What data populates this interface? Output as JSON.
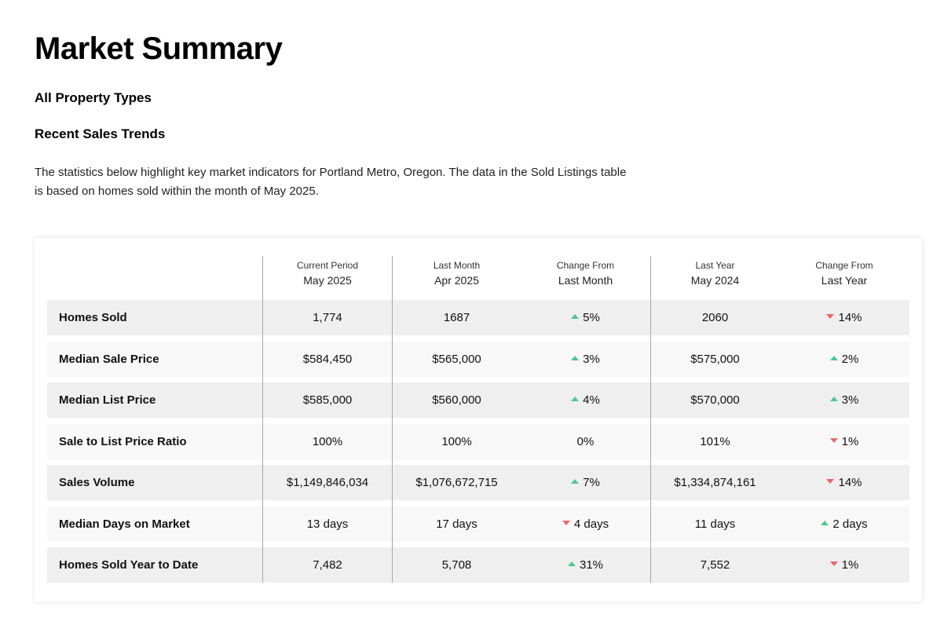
{
  "header": {
    "title": "Market Summary",
    "subtitle": "All Property Types",
    "section_title": "Recent Sales Trends",
    "description": "The statistics below highlight key market indicators for Portland Metro, Oregon. The data in the Sold Listings table is based on homes sold within the month of May 2025."
  },
  "colors": {
    "up": "#4cc98c",
    "down": "#e8686a"
  },
  "table": {
    "columns": [
      {
        "top": "Current Period",
        "bottom": "May 2025"
      },
      {
        "top": "Last Month",
        "bottom": "Apr 2025"
      },
      {
        "top": "Change From",
        "bottom": "Last Month"
      },
      {
        "top": "Last Year",
        "bottom": "May 2024"
      },
      {
        "top": "Change From",
        "bottom": "Last Year"
      }
    ],
    "rows": [
      {
        "label": "Homes Sold",
        "current": "1,774",
        "last_month": "1687",
        "change_month": "5%",
        "change_month_dir": "up",
        "last_year": "2060",
        "change_year": "14%",
        "change_year_dir": "down"
      },
      {
        "label": "Median Sale Price",
        "current": "$584,450",
        "last_month": "$565,000",
        "change_month": "3%",
        "change_month_dir": "up",
        "last_year": "$575,000",
        "change_year": "2%",
        "change_year_dir": "up"
      },
      {
        "label": "Median List Price",
        "current": "$585,000",
        "last_month": "$560,000",
        "change_month": "4%",
        "change_month_dir": "up",
        "last_year": "$570,000",
        "change_year": "3%",
        "change_year_dir": "up"
      },
      {
        "label": "Sale to List Price Ratio",
        "current": "100%",
        "last_month": "100%",
        "change_month": "0%",
        "change_month_dir": "none",
        "last_year": "101%",
        "change_year": "1%",
        "change_year_dir": "down"
      },
      {
        "label": "Sales Volume",
        "current": "$1,149,846,034",
        "last_month": "$1,076,672,715",
        "change_month": "7%",
        "change_month_dir": "up",
        "last_year": "$1,334,874,161",
        "change_year": "14%",
        "change_year_dir": "down"
      },
      {
        "label": "Median Days on Market",
        "current": "13 days",
        "last_month": "17 days",
        "change_month": "4 days",
        "change_month_dir": "down",
        "last_year": "11 days",
        "change_year": "2 days",
        "change_year_dir": "up"
      },
      {
        "label": "Homes Sold Year to Date",
        "current": "7,482",
        "last_month": "5,708",
        "change_month": "31%",
        "change_month_dir": "up",
        "last_year": "7,552",
        "change_year": "1%",
        "change_year_dir": "down"
      }
    ]
  }
}
